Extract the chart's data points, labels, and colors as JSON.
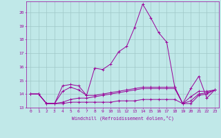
{
  "bg_color": "#c0e8e8",
  "grid_color": "#a0c8c8",
  "line_color": "#990099",
  "xlabel": "Windchill (Refroidissement éolien,°C)",
  "xlim": [
    -0.5,
    23.5
  ],
  "ylim": [
    13.0,
    20.8
  ],
  "yticks": [
    13,
    14,
    15,
    16,
    17,
    18,
    19,
    20
  ],
  "xticks": [
    0,
    1,
    2,
    3,
    4,
    5,
    6,
    7,
    8,
    9,
    10,
    11,
    12,
    13,
    14,
    15,
    16,
    17,
    18,
    19,
    20,
    21,
    22,
    23
  ],
  "lines": [
    [
      14.0,
      14.0,
      13.3,
      13.3,
      14.6,
      14.7,
      14.6,
      13.9,
      15.9,
      15.8,
      16.2,
      17.1,
      17.5,
      18.9,
      20.6,
      19.6,
      18.5,
      17.8,
      14.5,
      13.3,
      14.4,
      15.3,
      13.7,
      14.3
    ],
    [
      14.0,
      14.0,
      13.3,
      13.3,
      14.2,
      14.5,
      14.3,
      13.9,
      13.9,
      14.0,
      14.1,
      14.2,
      14.3,
      14.4,
      14.5,
      14.5,
      14.5,
      14.5,
      14.5,
      13.3,
      13.8,
      14.2,
      14.2,
      14.3
    ],
    [
      14.0,
      14.0,
      13.3,
      13.3,
      13.4,
      13.6,
      13.7,
      13.7,
      13.8,
      13.9,
      14.0,
      14.1,
      14.2,
      14.3,
      14.4,
      14.4,
      14.4,
      14.4,
      14.4,
      13.3,
      13.5,
      14.0,
      14.1,
      14.3
    ],
    [
      14.0,
      14.0,
      13.3,
      13.3,
      13.3,
      13.4,
      13.4,
      13.4,
      13.4,
      13.4,
      13.4,
      13.5,
      13.5,
      13.5,
      13.6,
      13.6,
      13.6,
      13.6,
      13.6,
      13.3,
      13.3,
      13.9,
      14.0,
      14.3
    ]
  ]
}
